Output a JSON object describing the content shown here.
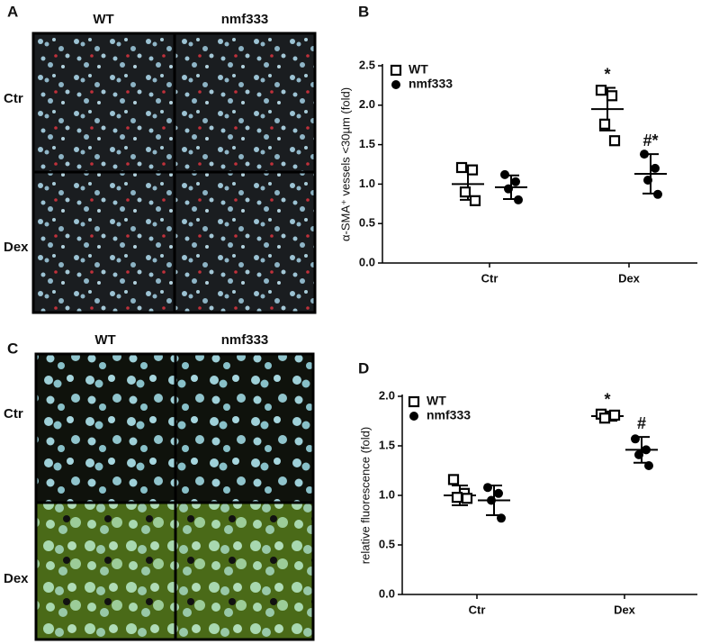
{
  "panel_labels": [
    "A",
    "B",
    "C",
    "D"
  ],
  "image_panels": [
    {
      "columns": [
        "WT",
        "nmf333"
      ],
      "rows": [
        "Ctr",
        "Dex"
      ]
    },
    {
      "columns": [
        "WT",
        "nmf333"
      ],
      "rows": [
        "Ctr",
        "Dex"
      ]
    }
  ],
  "chart_data": [
    {
      "type": "dot",
      "ylabel": "α-SMA⁺ vessels <30µm (fold)",
      "categories": [
        "Ctr",
        "Dex"
      ],
      "ylim": [
        0,
        2.5
      ],
      "yticks": [
        {
          "value": 0,
          "label": "0.0"
        },
        {
          "value": 0.5,
          "label": "0.5"
        },
        {
          "value": 1,
          "label": "1.0"
        },
        {
          "value": 1.5,
          "label": "1.5"
        },
        {
          "value": 2,
          "label": "2.0"
        },
        {
          "value": 2.5,
          "label": "2.5"
        }
      ],
      "series": [
        {
          "name": "WT",
          "marker": "open-square",
          "color": "#000000",
          "values": [
            [
              1.21,
              1.18,
              0.9,
              0.79
            ],
            [
              2.19,
              2.12,
              1.76,
              1.55
            ]
          ],
          "mean": [
            1.0,
            1.95
          ],
          "sd": [
            0.2,
            0.27
          ],
          "annotations": [
            null,
            "*"
          ]
        },
        {
          "name": "nmf333",
          "marker": "filled-circle",
          "color": "#000000",
          "values": [
            [
              1.12,
              1.03,
              0.94,
              0.8
            ],
            [
              1.38,
              1.2,
              1.05,
              0.87
            ]
          ],
          "mean": [
            0.96,
            1.13
          ],
          "sd": [
            0.15,
            0.25
          ],
          "annotations": [
            null,
            "#*"
          ]
        }
      ]
    },
    {
      "type": "dot",
      "ylabel": "relative fluorescence (fold)",
      "categories": [
        "Ctr",
        "Dex"
      ],
      "ylim": [
        0,
        2.0
      ],
      "yticks": [
        {
          "value": 0,
          "label": "0.0"
        },
        {
          "value": 0.5,
          "label": "0.5"
        },
        {
          "value": 1,
          "label": "1.0"
        },
        {
          "value": 1.5,
          "label": "1.5"
        },
        {
          "value": 2,
          "label": "2.0"
        }
      ],
      "series": [
        {
          "name": "WT",
          "marker": "open-square",
          "color": "#000000",
          "values": [
            [
              1.16,
              1.02,
              0.98,
              0.97
            ],
            [
              1.82,
              1.8,
              1.78,
              1.81
            ]
          ],
          "mean": [
            1.0,
            1.8
          ],
          "sd": [
            0.1,
            0.03
          ],
          "annotations": [
            null,
            "*"
          ]
        },
        {
          "name": "nmf333",
          "marker": "filled-circle",
          "color": "#000000",
          "values": [
            [
              1.08,
              1.02,
              0.95,
              0.77
            ],
            [
              1.57,
              1.46,
              1.41,
              1.3
            ]
          ],
          "mean": [
            0.95,
            1.46
          ],
          "sd": [
            0.15,
            0.13
          ],
          "annotations": [
            null,
            "#"
          ]
        }
      ]
    }
  ]
}
